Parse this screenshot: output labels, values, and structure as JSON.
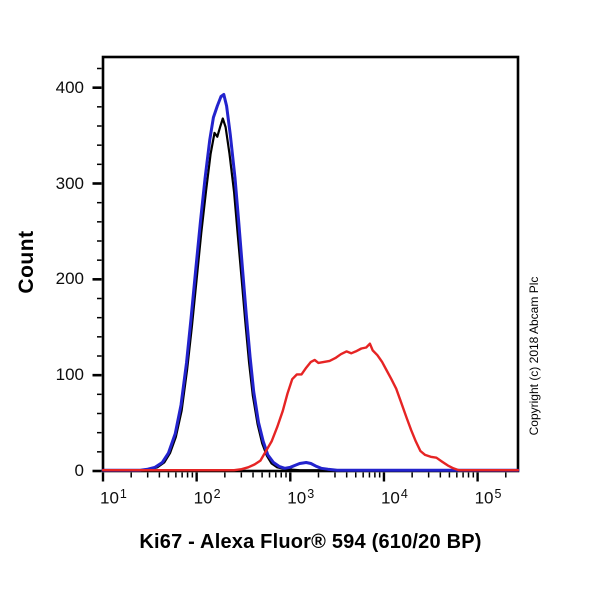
{
  "figure": {
    "copyright": "Copyright (c) 2018 Abcam Plc",
    "background": "#ffffff"
  },
  "chart_data": {
    "type": "line",
    "subtype": "flow-cytometry-histogram",
    "title": "",
    "xlabel": "Ki67 - Alexa Fluor® 594 (610/20 BP)",
    "ylabel": "Count",
    "grid": false,
    "legend": "none",
    "x_axis": {
      "scale": "log",
      "min": 10,
      "max": 270000,
      "major_ticks": [
        10,
        100,
        1000,
        10000,
        100000
      ],
      "minor_mantissas": [
        2,
        3,
        4,
        5,
        6,
        7,
        8,
        9
      ],
      "label": "Ki67 - Alexa Fluor® 594 (610/20 BP)"
    },
    "y_axis": {
      "min": 0,
      "max": 432,
      "major_ticks": [
        0,
        100,
        200,
        300,
        400
      ],
      "minor_step": 20,
      "label": "Count"
    },
    "series": [
      {
        "name": "black-control",
        "color": "#000000",
        "stroke_width": 2.2,
        "points": [
          [
            10,
            0
          ],
          [
            26,
            0
          ],
          [
            32,
            1
          ],
          [
            38,
            3
          ],
          [
            45,
            8
          ],
          [
            52,
            18
          ],
          [
            60,
            35
          ],
          [
            69,
            62
          ],
          [
            79,
            105
          ],
          [
            89,
            150
          ],
          [
            100,
            200
          ],
          [
            112,
            248
          ],
          [
            126,
            292
          ],
          [
            141,
            330
          ],
          [
            155,
            352
          ],
          [
            166,
            348
          ],
          [
            178,
            358
          ],
          [
            190,
            367
          ],
          [
            204,
            358
          ],
          [
            224,
            330
          ],
          [
            251,
            290
          ],
          [
            275,
            245
          ],
          [
            302,
            200
          ],
          [
            331,
            155
          ],
          [
            363,
            112
          ],
          [
            398,
            78
          ],
          [
            447,
            48
          ],
          [
            501,
            28
          ],
          [
            562,
            15
          ],
          [
            631,
            7
          ],
          [
            724,
            3
          ],
          [
            891,
            1
          ],
          [
            1260,
            0
          ],
          [
            270000,
            0
          ]
        ]
      },
      {
        "name": "blue-control",
        "color": "#2323cd",
        "stroke_width": 3,
        "points": [
          [
            10,
            0
          ],
          [
            25,
            0
          ],
          [
            30,
            1
          ],
          [
            36,
            3
          ],
          [
            43,
            8
          ],
          [
            50,
            18
          ],
          [
            59,
            38
          ],
          [
            68,
            68
          ],
          [
            78,
            112
          ],
          [
            87,
            158
          ],
          [
            98,
            210
          ],
          [
            110,
            260
          ],
          [
            123,
            305
          ],
          [
            138,
            345
          ],
          [
            151,
            368
          ],
          [
            166,
            380
          ],
          [
            182,
            390
          ],
          [
            195,
            392
          ],
          [
            209,
            380
          ],
          [
            229,
            350
          ],
          [
            257,
            305
          ],
          [
            282,
            258
          ],
          [
            309,
            210
          ],
          [
            339,
            162
          ],
          [
            372,
            118
          ],
          [
            407,
            82
          ],
          [
            457,
            50
          ],
          [
            513,
            30
          ],
          [
            575,
            16
          ],
          [
            661,
            8
          ],
          [
            759,
            4
          ],
          [
            871,
            2
          ],
          [
            1000,
            3
          ],
          [
            1122,
            5
          ],
          [
            1259,
            7
          ],
          [
            1479,
            8
          ],
          [
            1660,
            7
          ],
          [
            1905,
            4
          ],
          [
            2138,
            2
          ],
          [
            2512,
            1
          ],
          [
            3162,
            0
          ],
          [
            270000,
            0
          ]
        ]
      },
      {
        "name": "red-ki67-stained",
        "color": "#e62424",
        "stroke_width": 2.4,
        "points": [
          [
            10,
            0
          ],
          [
            251,
            0
          ],
          [
            302,
            1
          ],
          [
            355,
            3
          ],
          [
            417,
            6
          ],
          [
            479,
            10
          ],
          [
            550,
            20
          ],
          [
            631,
            30
          ],
          [
            724,
            45
          ],
          [
            832,
            62
          ],
          [
            933,
            80
          ],
          [
            1047,
            95
          ],
          [
            1175,
            100
          ],
          [
            1318,
            100
          ],
          [
            1479,
            107
          ],
          [
            1660,
            113
          ],
          [
            1820,
            115
          ],
          [
            1995,
            112
          ],
          [
            2290,
            113
          ],
          [
            2630,
            114
          ],
          [
            3020,
            117
          ],
          [
            3470,
            121
          ],
          [
            3980,
            124
          ],
          [
            4470,
            122
          ],
          [
            5010,
            124
          ],
          [
            5750,
            127
          ],
          [
            6460,
            128
          ],
          [
            7080,
            132
          ],
          [
            7590,
            125
          ],
          [
            8510,
            120
          ],
          [
            9550,
            113
          ],
          [
            10700,
            104
          ],
          [
            12000,
            95
          ],
          [
            13500,
            85
          ],
          [
            15100,
            72
          ],
          [
            17400,
            55
          ],
          [
            19500,
            42
          ],
          [
            21900,
            30
          ],
          [
            24500,
            20
          ],
          [
            27500,
            16
          ],
          [
            31600,
            14
          ],
          [
            36300,
            13
          ],
          [
            41700,
            9
          ],
          [
            47900,
            5
          ],
          [
            55000,
            2
          ],
          [
            63100,
            0
          ],
          [
            270000,
            0
          ]
        ]
      }
    ]
  }
}
